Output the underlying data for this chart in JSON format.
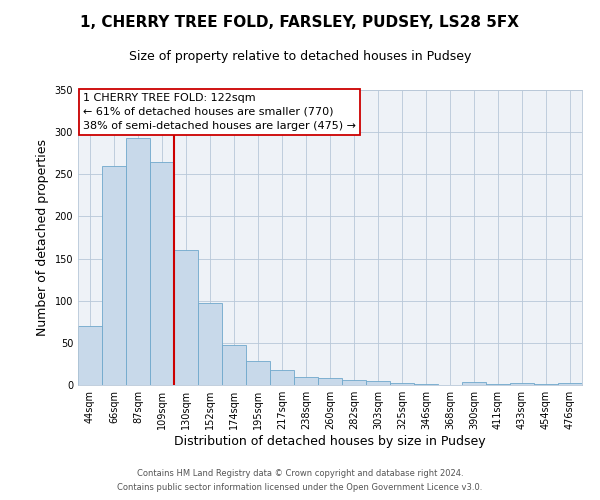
{
  "title": "1, CHERRY TREE FOLD, FARSLEY, PUDSEY, LS28 5FX",
  "subtitle": "Size of property relative to detached houses in Pudsey",
  "xlabel": "Distribution of detached houses by size in Pudsey",
  "ylabel": "Number of detached properties",
  "bar_labels": [
    "44sqm",
    "66sqm",
    "87sqm",
    "109sqm",
    "130sqm",
    "152sqm",
    "174sqm",
    "195sqm",
    "217sqm",
    "238sqm",
    "260sqm",
    "282sqm",
    "303sqm",
    "325sqm",
    "346sqm",
    "368sqm",
    "390sqm",
    "411sqm",
    "433sqm",
    "454sqm",
    "476sqm"
  ],
  "bar_values": [
    70,
    260,
    293,
    265,
    160,
    97,
    48,
    29,
    18,
    10,
    8,
    6,
    5,
    2,
    1,
    0,
    3,
    1,
    2,
    1,
    2
  ],
  "bar_color": "#c8d9ea",
  "bar_edgecolor": "#6fa8cc",
  "ylim": [
    0,
    350
  ],
  "yticks": [
    0,
    50,
    100,
    150,
    200,
    250,
    300,
    350
  ],
  "vline_x_index": 4,
  "vline_color": "#cc0000",
  "annotation_title": "1 CHERRY TREE FOLD: 122sqm",
  "annotation_line1": "← 61% of detached houses are smaller (770)",
  "annotation_line2": "38% of semi-detached houses are larger (475) →",
  "annotation_box_edgecolor": "#cc0000",
  "background_color": "#eef2f7",
  "footer1": "Contains HM Land Registry data © Crown copyright and database right 2024.",
  "footer2": "Contains public sector information licensed under the Open Government Licence v3.0.",
  "title_fontsize": 11,
  "subtitle_fontsize": 9,
  "axis_label_fontsize": 9,
  "tick_fontsize": 7,
  "annotation_fontsize": 8,
  "footer_fontsize": 6
}
